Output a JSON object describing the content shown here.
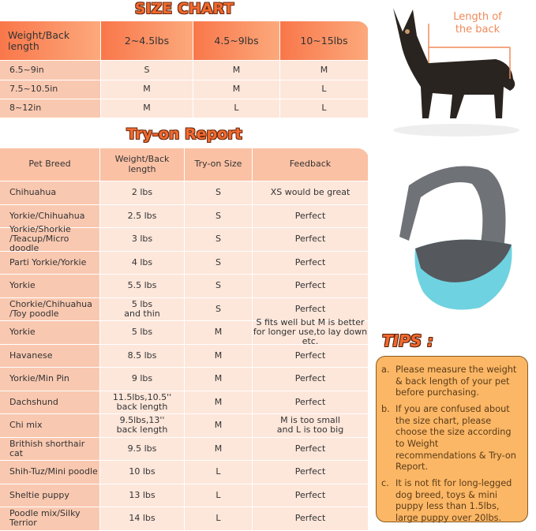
{
  "size_chart": {
    "title": "SIZE CHART",
    "header": [
      "Weight/Back length",
      "2~4.5lbs",
      "4.5~9lbs",
      "10~15lbs"
    ],
    "rows": [
      [
        "6.5~9in",
        "S",
        "M",
        "M"
      ],
      [
        "7.5~10.5in",
        "M",
        "M",
        "L"
      ],
      [
        "8~12in",
        "M",
        "L",
        "L"
      ]
    ]
  },
  "dog_image": {
    "label": "Length of\nthe back"
  },
  "tryon": {
    "title": "Try-on Report",
    "header": [
      "Pet Breed",
      "Weight/Back length",
      "Try-on Size",
      "Feedback"
    ],
    "rows": [
      [
        "Chihuahua",
        "2 lbs",
        "S",
        "XS would be great"
      ],
      [
        "Yorkie/Chihuahua",
        "2.5 lbs",
        "S",
        "Perfect"
      ],
      [
        "Yorkie/Shorkie\n/Teacup/Micro doodle",
        "3 lbs",
        "S",
        "Perfect"
      ],
      [
        "Parti Yorkie/Yorkie",
        "4 lbs",
        "S",
        "Perfect"
      ],
      [
        "Yorkie",
        "5.5 lbs",
        "S",
        "Perfect"
      ],
      [
        "Chorkie/Chihuahua\n/Toy poodle",
        "5 lbs\nand thin",
        "S",
        "Perfect"
      ],
      [
        "Yorkie",
        "5 lbs",
        "M",
        "S fits well but M is better\nfor longer use,to lay down etc."
      ],
      [
        "Havanese",
        "8.5 lbs",
        "M",
        "Perfect"
      ],
      [
        "Yorkie/Min Pin",
        "9 lbs",
        "M",
        "Perfect"
      ],
      [
        "Dachshund",
        "11.5lbs,10.5''\nback length",
        "M",
        "Perfect"
      ],
      [
        "Chi mix",
        "9.5lbs,13''\nback length",
        "M",
        "M is too small\nand L is too big"
      ],
      [
        "Brithish shorthair cat",
        "9.5 lbs",
        "M",
        "Perfect"
      ],
      [
        "Shih-Tuz/Mini poodle",
        "10 lbs",
        "L",
        "Perfect"
      ],
      [
        "Sheltie puppy",
        "13 lbs",
        "L",
        "Perfect"
      ],
      [
        "Poodle mix/Silky\nTerrior",
        "14 lbs",
        "L",
        "Perfect"
      ]
    ]
  },
  "tips": {
    "title": "TIPS :",
    "items": [
      {
        "marker": "a.",
        "text": "Please measure the weight & back length of your pet before purchasing."
      },
      {
        "marker": "b.",
        "text": "If you are confused about the size chart, please choose the size according to Weight recommendations & Try-on Report."
      },
      {
        "marker": "c.",
        "text": "It is not fit for long-legged dog breed, toys & mini puppy less than 1.5lbs, large puppy over 20lbs."
      }
    ]
  }
}
